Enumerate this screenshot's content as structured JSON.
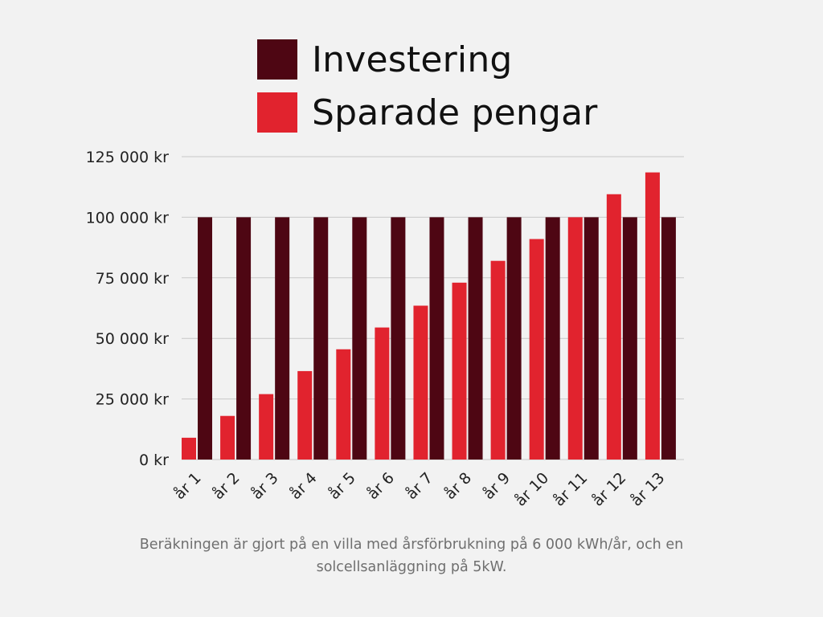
{
  "legend": {
    "investment_label": "Investering",
    "savings_label": "Sparade pengar"
  },
  "colors": {
    "investment": "#4e0613",
    "savings": "#e1232e",
    "grid": "#c8c8c8",
    "background": "#f2f2f2"
  },
  "caption": "Beräkningen är gjort på en villa med årsförbrukning på 6 000 kWh/år, och en solcellsanläggning på 5kW.",
  "chart_data": {
    "type": "bar",
    "title": "",
    "xlabel": "",
    "ylabel": "",
    "ylim": [
      0,
      125000
    ],
    "yticks": [
      0,
      25000,
      50000,
      75000,
      100000,
      125000
    ],
    "ytick_labels": [
      "0 kr",
      "25 000 kr",
      "50 000 kr",
      "75 000 kr",
      "100 000 kr",
      "125 000 kr"
    ],
    "grid": true,
    "legend_position": "top-center",
    "categories": [
      "år 1",
      "år 2",
      "år 3",
      "år 4",
      "år 5",
      "år 6",
      "år 7",
      "år 8",
      "år 9",
      "år 10",
      "år 11",
      "år 12",
      "år 13"
    ],
    "series": [
      {
        "name": "Sparade pengar",
        "color": "#e1232e",
        "values": [
          9000,
          18000,
          27000,
          36500,
          45500,
          54500,
          63500,
          73000,
          82000,
          91000,
          100000,
          109500,
          118500
        ]
      },
      {
        "name": "Investering",
        "color": "#4e0613",
        "values": [
          100000,
          100000,
          100000,
          100000,
          100000,
          100000,
          100000,
          100000,
          100000,
          100000,
          100000,
          100000,
          100000
        ]
      }
    ]
  }
}
